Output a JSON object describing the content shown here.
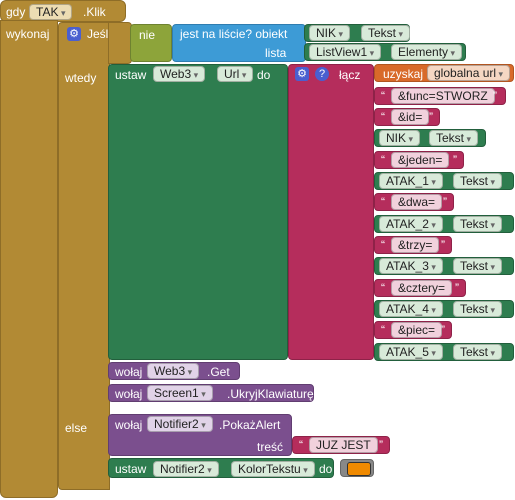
{
  "event": {
    "gdy": "gdy",
    "component": "TAK",
    "event": ".Klik",
    "wykonaj": "wykonaj"
  },
  "if_block": {
    "label": "Jeśli",
    "nie": "nie",
    "is_in_list": "jest na liście? obiekt",
    "lista": "lista",
    "obj_component": "NIK",
    "obj_prop": "Tekst",
    "list_component": "ListView1",
    "list_prop": "Elementy",
    "wtedy": "wtedy",
    "else": "else"
  },
  "set_url": {
    "ustaw": "ustaw",
    "component": "Web3",
    "prop": "Url",
    "do": "do",
    "join": "łącz",
    "get": "uzyskaj",
    "global_var": "globalna url"
  },
  "join_items": [
    {
      "type": "text",
      "value": "&func=STWORZ"
    },
    {
      "type": "text",
      "value": "&id="
    },
    {
      "type": "prop",
      "component": "NIK",
      "prop": "Tekst"
    },
    {
      "type": "text",
      "value": "&jeden="
    },
    {
      "type": "prop",
      "component": "ATAK_1",
      "prop": "Tekst"
    },
    {
      "type": "text",
      "value": "&dwa="
    },
    {
      "type": "prop",
      "component": "ATAK_2",
      "prop": "Tekst"
    },
    {
      "type": "text",
      "value": "&trzy="
    },
    {
      "type": "prop",
      "component": "ATAK_3",
      "prop": "Tekst"
    },
    {
      "type": "text",
      "value": "&cztery="
    },
    {
      "type": "prop",
      "component": "ATAK_4",
      "prop": "Tekst"
    },
    {
      "type": "text",
      "value": "&piec="
    },
    {
      "type": "prop",
      "component": "ATAK_5",
      "prop": "Tekst"
    }
  ],
  "call_get": {
    "wolaj": "wołaj",
    "component": "Web3",
    "method": ".Get"
  },
  "call_hide": {
    "wolaj": "wołaj",
    "component": "Screen1",
    "method": ".UkryjKlawiaturę"
  },
  "call_alert": {
    "wolaj": "wołaj",
    "component": "Notifier2",
    "method": ".PokażAlert",
    "tresc": "treść",
    "message": "JUZ JEST"
  },
  "set_color": {
    "ustaw": "ustaw",
    "component": "Notifier2",
    "prop": "KolorTekstu",
    "do": "do",
    "color": "#f08a00"
  }
}
